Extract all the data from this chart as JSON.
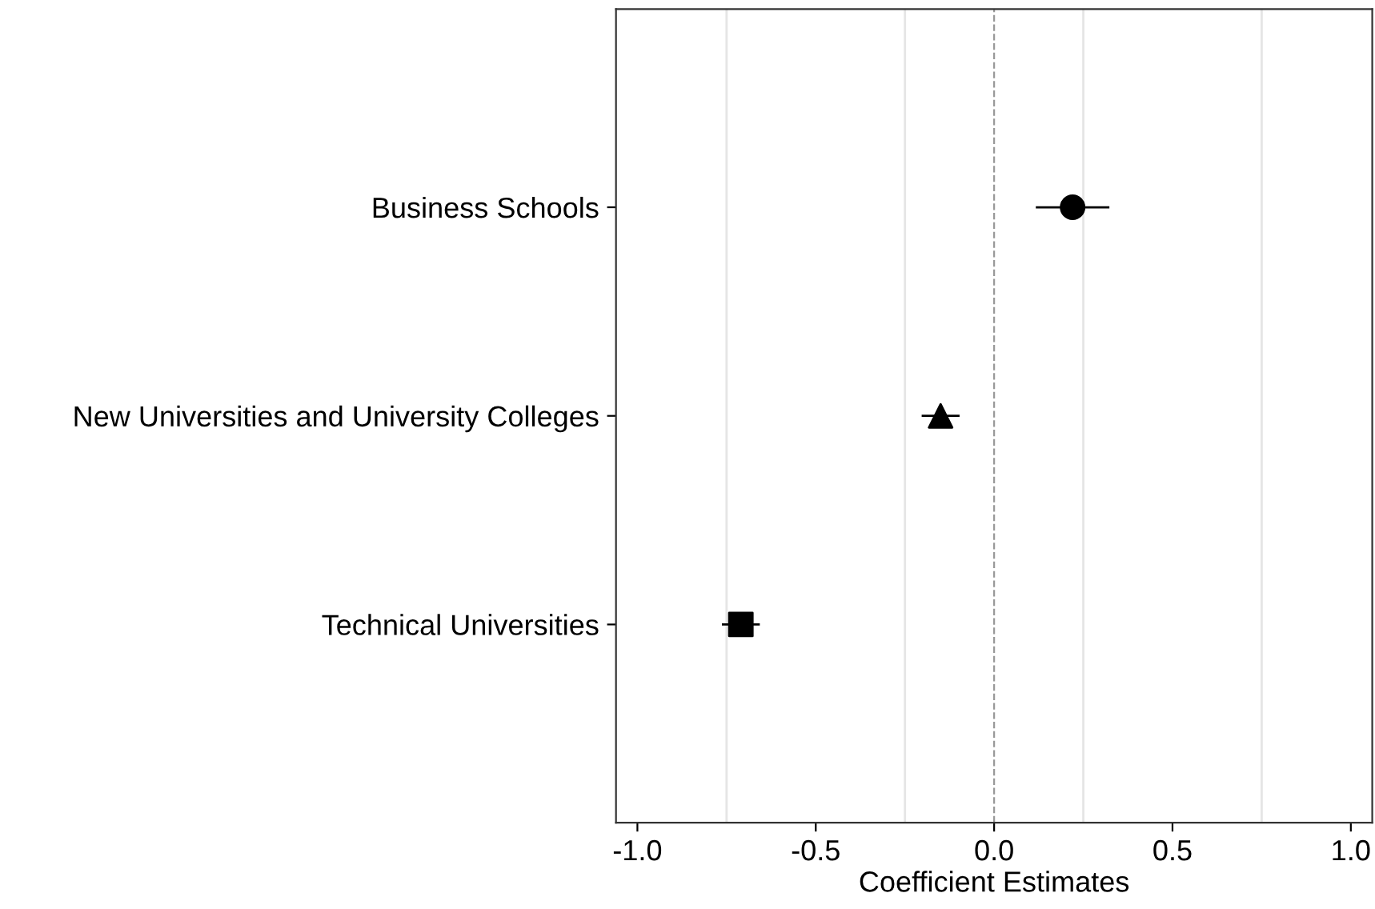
{
  "chart_data": {
    "type": "scatter",
    "orientation": "horizontal",
    "xlabel": "Coefficient Estimates",
    "categories": [
      "Business Schools",
      "New Universities and University Colleges",
      "Technical Universities"
    ],
    "series": [
      {
        "color": "#000000",
        "marker": "circle",
        "values": [
          0.22,
          null,
          null
        ],
        "errors": [
          [
            0.12,
            0.32
          ],
          null,
          null
        ]
      },
      {
        "color": "#000000",
        "marker": "triangle",
        "values": [
          null,
          -0.15,
          null
        ],
        "errors": [
          null,
          [
            -0.2,
            -0.1
          ],
          null
        ]
      },
      {
        "color": "#000000",
        "marker": "square",
        "values": [
          null,
          null,
          -0.71
        ],
        "errors": [
          null,
          null,
          [
            -0.76,
            -0.66
          ]
        ]
      }
    ],
    "xlim": [
      -1.06,
      1.06
    ],
    "xticks": [
      {
        "value": -1,
        "label": "-1.0"
      },
      {
        "value": -0.75,
        "label": null
      },
      -0.5,
      {
        "value": -0.25,
        "label": null
      },
      {
        "value": 0,
        "label": "0.0"
      },
      {
        "value": 0.25,
        "label": null
      },
      0.5,
      {
        "value": 0.75,
        "label": null
      },
      {
        "value": 1,
        "label": "1.0"
      }
    ],
    "grid": "x",
    "ref_lines": [
      {
        "axis": "x",
        "value": 0,
        "color": "#999999",
        "line_style": "dashed"
      }
    ]
  }
}
